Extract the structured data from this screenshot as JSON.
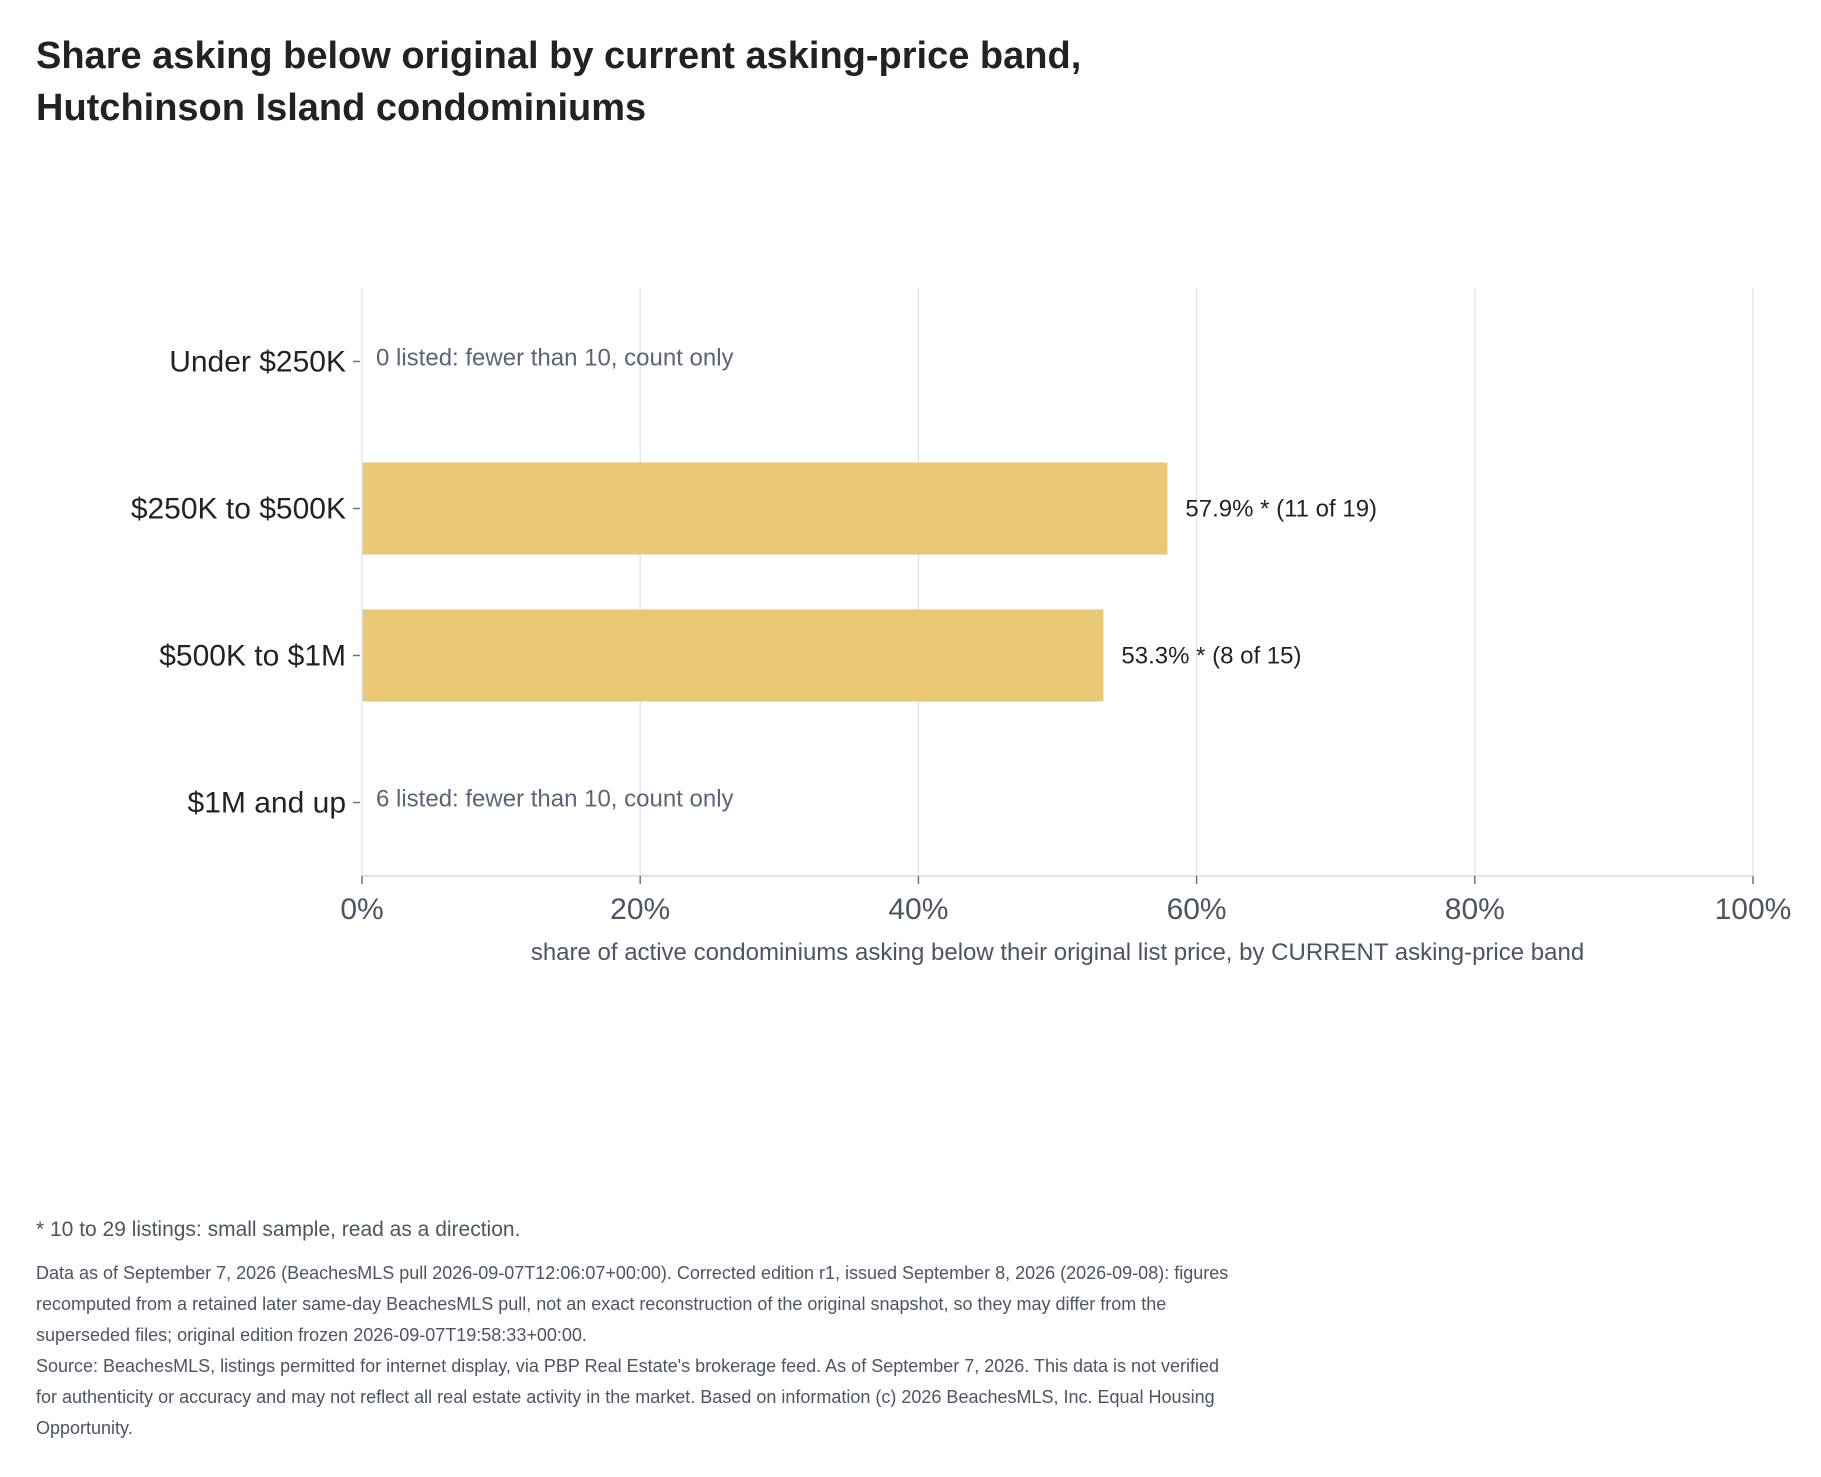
{
  "title_lines": [
    "Share asking below original by current asking-price band,",
    "Hutchinson Island condominiums"
  ],
  "chart_data": {
    "type": "bar",
    "orientation": "horizontal",
    "categories": [
      "Under $250K",
      "$250K to $500K",
      "$500K to $1M",
      "$1M and up"
    ],
    "values": [
      null,
      57.9,
      53.3,
      null
    ],
    "data_labels": [
      "0 listed: fewer than 10, count only",
      "57.9% *  (11 of 19)",
      "53.3% *  (8 of 15)",
      "6 listed: fewer than 10, count only"
    ],
    "xlabel": "share of active condominiums asking below their original list price, by CURRENT asking-price band",
    "xlim": [
      0,
      100
    ],
    "xticks": [
      0,
      20,
      40,
      60,
      80,
      100
    ],
    "xtick_labels": [
      "0%",
      "20%",
      "40%",
      "60%",
      "80%",
      "100%"
    ],
    "grid": true,
    "bar_color": "#e8c775"
  },
  "footnote": "* 10 to 29 listings: small sample, read as a direction.",
  "edition_note_lines": [
    "Data as of September 7, 2026 (BeachesMLS pull 2026-09-07T12:06:07+00:00). Corrected edition r1, issued September 8, 2026 (2026-09-08): figures",
    "recomputed from a retained later same-day BeachesMLS pull, not an exact reconstruction of the original snapshot, so they may differ from the",
    "superseded files; original edition frozen 2026-09-07T19:58:33+00:00."
  ],
  "source_note_lines": [
    "Source: BeachesMLS, listings permitted for internet display, via PBP Real Estate's brokerage feed. As of September 7, 2026. This data is not verified",
    "for authenticity or accuracy and may not reflect all real estate activity in the market. Based on information (c) 2026 BeachesMLS, Inc. Equal Housing",
    "Opportunity."
  ]
}
